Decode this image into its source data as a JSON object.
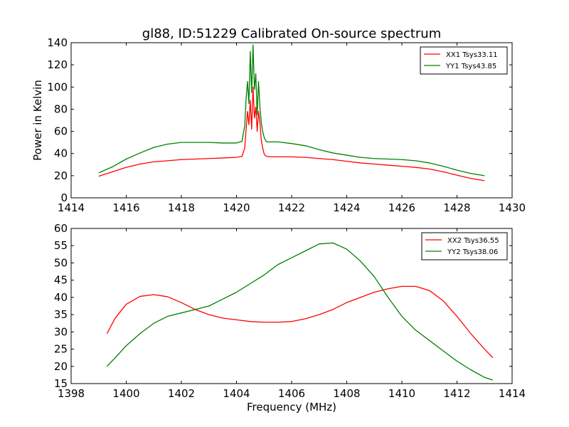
{
  "figure": {
    "title": "gl88, ID:51229 Calibrated On-source spectrum"
  },
  "chart_data": [
    {
      "type": "line",
      "title": "gl88, ID:51229 Calibrated On-source spectrum",
      "xlabel": "",
      "ylabel": "Power in Kelvin",
      "xlim": [
        1414,
        1430
      ],
      "ylim": [
        0,
        140
      ],
      "xticks": [
        1414,
        1416,
        1418,
        1420,
        1422,
        1424,
        1426,
        1428,
        1430
      ],
      "yticks": [
        0,
        20,
        40,
        60,
        80,
        100,
        120,
        140
      ],
      "legend_position": "top-right",
      "grid": false,
      "series": [
        {
          "name": "XX1 Tsys33.11",
          "color": "#ff0000",
          "x": [
            1415.0,
            1415.5,
            1416.0,
            1416.5,
            1417.0,
            1417.5,
            1418.0,
            1418.5,
            1419.0,
            1419.5,
            1420.0,
            1420.2,
            1420.3,
            1420.35,
            1420.4,
            1420.45,
            1420.5,
            1420.55,
            1420.6,
            1420.65,
            1420.7,
            1420.75,
            1420.8,
            1420.85,
            1420.9,
            1420.95,
            1421.0,
            1421.05,
            1421.1,
            1421.2,
            1421.5,
            1422.0,
            1422.5,
            1423.0,
            1423.5,
            1424.0,
            1424.5,
            1425.0,
            1425.5,
            1426.0,
            1426.5,
            1427.0,
            1427.5,
            1428.0,
            1428.5,
            1429.0
          ],
          "y": [
            19.5,
            23.5,
            27.5,
            30.5,
            32.5,
            33.5,
            34.5,
            35.0,
            35.5,
            36.0,
            36.5,
            37.5,
            45,
            62,
            78,
            66,
            88,
            62,
            100,
            72,
            82,
            60,
            78,
            68,
            52,
            45,
            40,
            38,
            37.5,
            37,
            37,
            37,
            36.5,
            35.5,
            34.5,
            33,
            31.5,
            30.5,
            29.5,
            28.5,
            27.5,
            26,
            23.5,
            20.5,
            17.5,
            15.5
          ]
        },
        {
          "name": "YY1 Tsys43.85",
          "color": "#008000",
          "x": [
            1415.0,
            1415.5,
            1416.0,
            1416.5,
            1417.0,
            1417.5,
            1418.0,
            1418.5,
            1419.0,
            1419.5,
            1420.0,
            1420.2,
            1420.3,
            1420.35,
            1420.4,
            1420.45,
            1420.5,
            1420.55,
            1420.6,
            1420.65,
            1420.7,
            1420.75,
            1420.8,
            1420.85,
            1420.9,
            1420.95,
            1421.0,
            1421.05,
            1421.1,
            1421.2,
            1421.5,
            1422.0,
            1422.5,
            1423.0,
            1423.5,
            1424.0,
            1424.5,
            1425.0,
            1425.5,
            1426.0,
            1426.5,
            1427.0,
            1427.5,
            1428.0,
            1428.5,
            1429.0
          ],
          "y": [
            22.5,
            28,
            35,
            40.5,
            45.5,
            48.5,
            50,
            50,
            50,
            49.5,
            49.5,
            51,
            65,
            90,
            105,
            85,
            132,
            95,
            138,
            98,
            112,
            75,
            105,
            82,
            68,
            60,
            55,
            52,
            50.5,
            50.5,
            50.5,
            49,
            47,
            43.5,
            40.5,
            38.5,
            36.5,
            35.5,
            35,
            34.5,
            33.5,
            31.5,
            28.5,
            25,
            22,
            20
          ]
        }
      ]
    },
    {
      "type": "line",
      "title": "",
      "xlabel": "Frequency (MHz)",
      "ylabel": "",
      "xlim": [
        1398,
        1414
      ],
      "ylim": [
        15,
        60
      ],
      "xticks": [
        1398,
        1400,
        1402,
        1404,
        1406,
        1408,
        1410,
        1412,
        1414
      ],
      "yticks": [
        15,
        20,
        25,
        30,
        35,
        40,
        45,
        50,
        55,
        60
      ],
      "legend_position": "top-right",
      "grid": false,
      "series": [
        {
          "name": "XX2 Tsys36.55",
          "color": "#ff0000",
          "x": [
            1399.3,
            1399.6,
            1400.0,
            1400.5,
            1401.0,
            1401.5,
            1402.0,
            1402.5,
            1403.0,
            1403.5,
            1404.0,
            1404.5,
            1405.0,
            1405.5,
            1406.0,
            1406.5,
            1407.0,
            1407.5,
            1408.0,
            1408.5,
            1409.0,
            1409.5,
            1410.0,
            1410.5,
            1411.0,
            1411.5,
            1412.0,
            1412.5,
            1413.0,
            1413.3
          ],
          "y": [
            29.5,
            34,
            38,
            40.3,
            40.8,
            40.2,
            38.5,
            36.5,
            35,
            34,
            33.5,
            33,
            32.8,
            32.8,
            33,
            33.8,
            35,
            36.5,
            38.5,
            40,
            41.5,
            42.5,
            43.2,
            43.2,
            42,
            39,
            34.5,
            29.5,
            25,
            22.5
          ]
        },
        {
          "name": "YY2 Tsys38.06",
          "color": "#008000",
          "x": [
            1399.3,
            1399.6,
            1400.0,
            1400.5,
            1401.0,
            1401.5,
            1402.0,
            1402.5,
            1403.0,
            1403.5,
            1404.0,
            1404.5,
            1405.0,
            1405.5,
            1406.0,
            1406.5,
            1407.0,
            1407.5,
            1408.0,
            1408.5,
            1409.0,
            1409.5,
            1410.0,
            1410.5,
            1411.0,
            1411.5,
            1412.0,
            1412.5,
            1413.0,
            1413.3
          ],
          "y": [
            20,
            22.5,
            26,
            29.5,
            32.5,
            34.5,
            35.5,
            36.5,
            37.5,
            39.5,
            41.5,
            44,
            46.5,
            49.5,
            51.5,
            53.5,
            55.5,
            55.8,
            54,
            50.5,
            46,
            40,
            34.5,
            30.5,
            27.5,
            24.5,
            21.5,
            19,
            16.8,
            16
          ]
        }
      ]
    }
  ]
}
